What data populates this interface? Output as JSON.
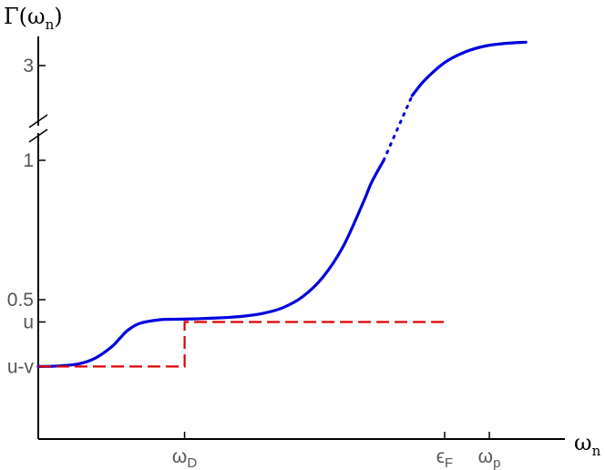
{
  "chart_data": {
    "type": "line",
    "title": "",
    "xlabel": "ω",
    "xlabel_sub": "n",
    "ylabel": "Γ(ω",
    "ylabel_sub": "n",
    "ylabel_close": ")",
    "x_ticks": [
      {
        "label": "ω",
        "sub": "D"
      },
      {
        "label": "ϵ",
        "sub": "F"
      },
      {
        "label": "ω",
        "sub": "p"
      }
    ],
    "y_ticks": [
      {
        "label": "u-v"
      },
      {
        "label": "u"
      },
      {
        "label": "0.5"
      },
      {
        "label": "1"
      },
      {
        "label": "3"
      }
    ],
    "axis_break": "y",
    "grid": false,
    "legend": "none",
    "series": [
      {
        "style": "solid",
        "color": "#0000dd",
        "x": [
          0.0,
          0.05,
          0.1,
          0.14,
          0.18,
          0.2,
          0.22,
          0.25,
          0.3,
          0.35,
          0.4,
          0.45,
          0.5,
          0.55,
          0.6,
          0.65,
          0.7,
          0.75,
          0.8,
          0.82,
          0.85,
          0.88,
          0.9,
          0.92,
          0.95,
          1.0,
          1.05,
          1.1,
          1.15,
          1.2
        ],
        "y": [
          0.26,
          0.262,
          0.27,
          0.29,
          0.33,
          0.36,
          0.39,
          0.415,
          0.428,
          0.43,
          0.432,
          0.435,
          0.44,
          0.45,
          0.47,
          0.51,
          0.58,
          0.69,
          0.85,
          0.92,
          1.0,
          1.25,
          1.6,
          2.0,
          2.5,
          3.1,
          3.45,
          3.65,
          3.74,
          3.78
        ]
      },
      {
        "style": "dashed",
        "color": "#dd0000",
        "x": [
          0.0,
          0.36,
          0.36,
          1.0
        ],
        "y": [
          0.26,
          0.26,
          0.42,
          0.42
        ]
      }
    ],
    "colors": {
      "curve": "#0000dd",
      "step": "#dd0000",
      "axes": "#000000"
    }
  }
}
